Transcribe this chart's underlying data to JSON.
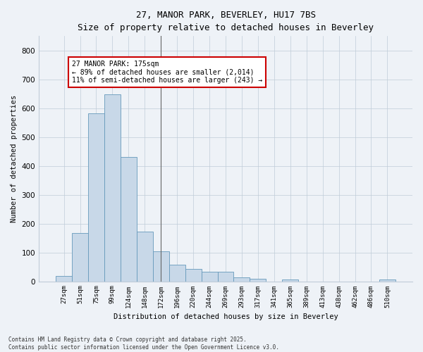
{
  "title_line1": "27, MANOR PARK, BEVERLEY, HU17 7BS",
  "title_line2": "Size of property relative to detached houses in Beverley",
  "xlabel": "Distribution of detached houses by size in Beverley",
  "ylabel": "Number of detached properties",
  "categories": [
    "27sqm",
    "51sqm",
    "75sqm",
    "99sqm",
    "124sqm",
    "148sqm",
    "172sqm",
    "196sqm",
    "220sqm",
    "244sqm",
    "269sqm",
    "293sqm",
    "317sqm",
    "341sqm",
    "365sqm",
    "389sqm",
    "413sqm",
    "438sqm",
    "462sqm",
    "486sqm",
    "510sqm"
  ],
  "values": [
    18,
    168,
    582,
    648,
    432,
    172,
    103,
    58,
    44,
    32,
    32,
    14,
    8,
    0,
    6,
    0,
    0,
    0,
    0,
    0,
    7
  ],
  "bar_color": "#c8d8e8",
  "bar_edge_color": "#6699bb",
  "vline_x_index": 6,
  "vline_color": "#666666",
  "annotation_title": "27 MANOR PARK: 175sqm",
  "annotation_line2": "← 89% of detached houses are smaller (2,014)",
  "annotation_line3": "11% of semi-detached houses are larger (243) →",
  "annotation_box_color": "#ffffff",
  "annotation_border_color": "#cc0000",
  "ylim": [
    0,
    850
  ],
  "yticks": [
    0,
    100,
    200,
    300,
    400,
    500,
    600,
    700,
    800
  ],
  "background_color": "#eef2f7",
  "grid_color": "#c0ccd8",
  "footer_line1": "Contains HM Land Registry data © Crown copyright and database right 2025.",
  "footer_line2": "Contains public sector information licensed under the Open Government Licence v3.0.",
  "figsize": [
    6.0,
    5.0
  ],
  "dpi": 100
}
